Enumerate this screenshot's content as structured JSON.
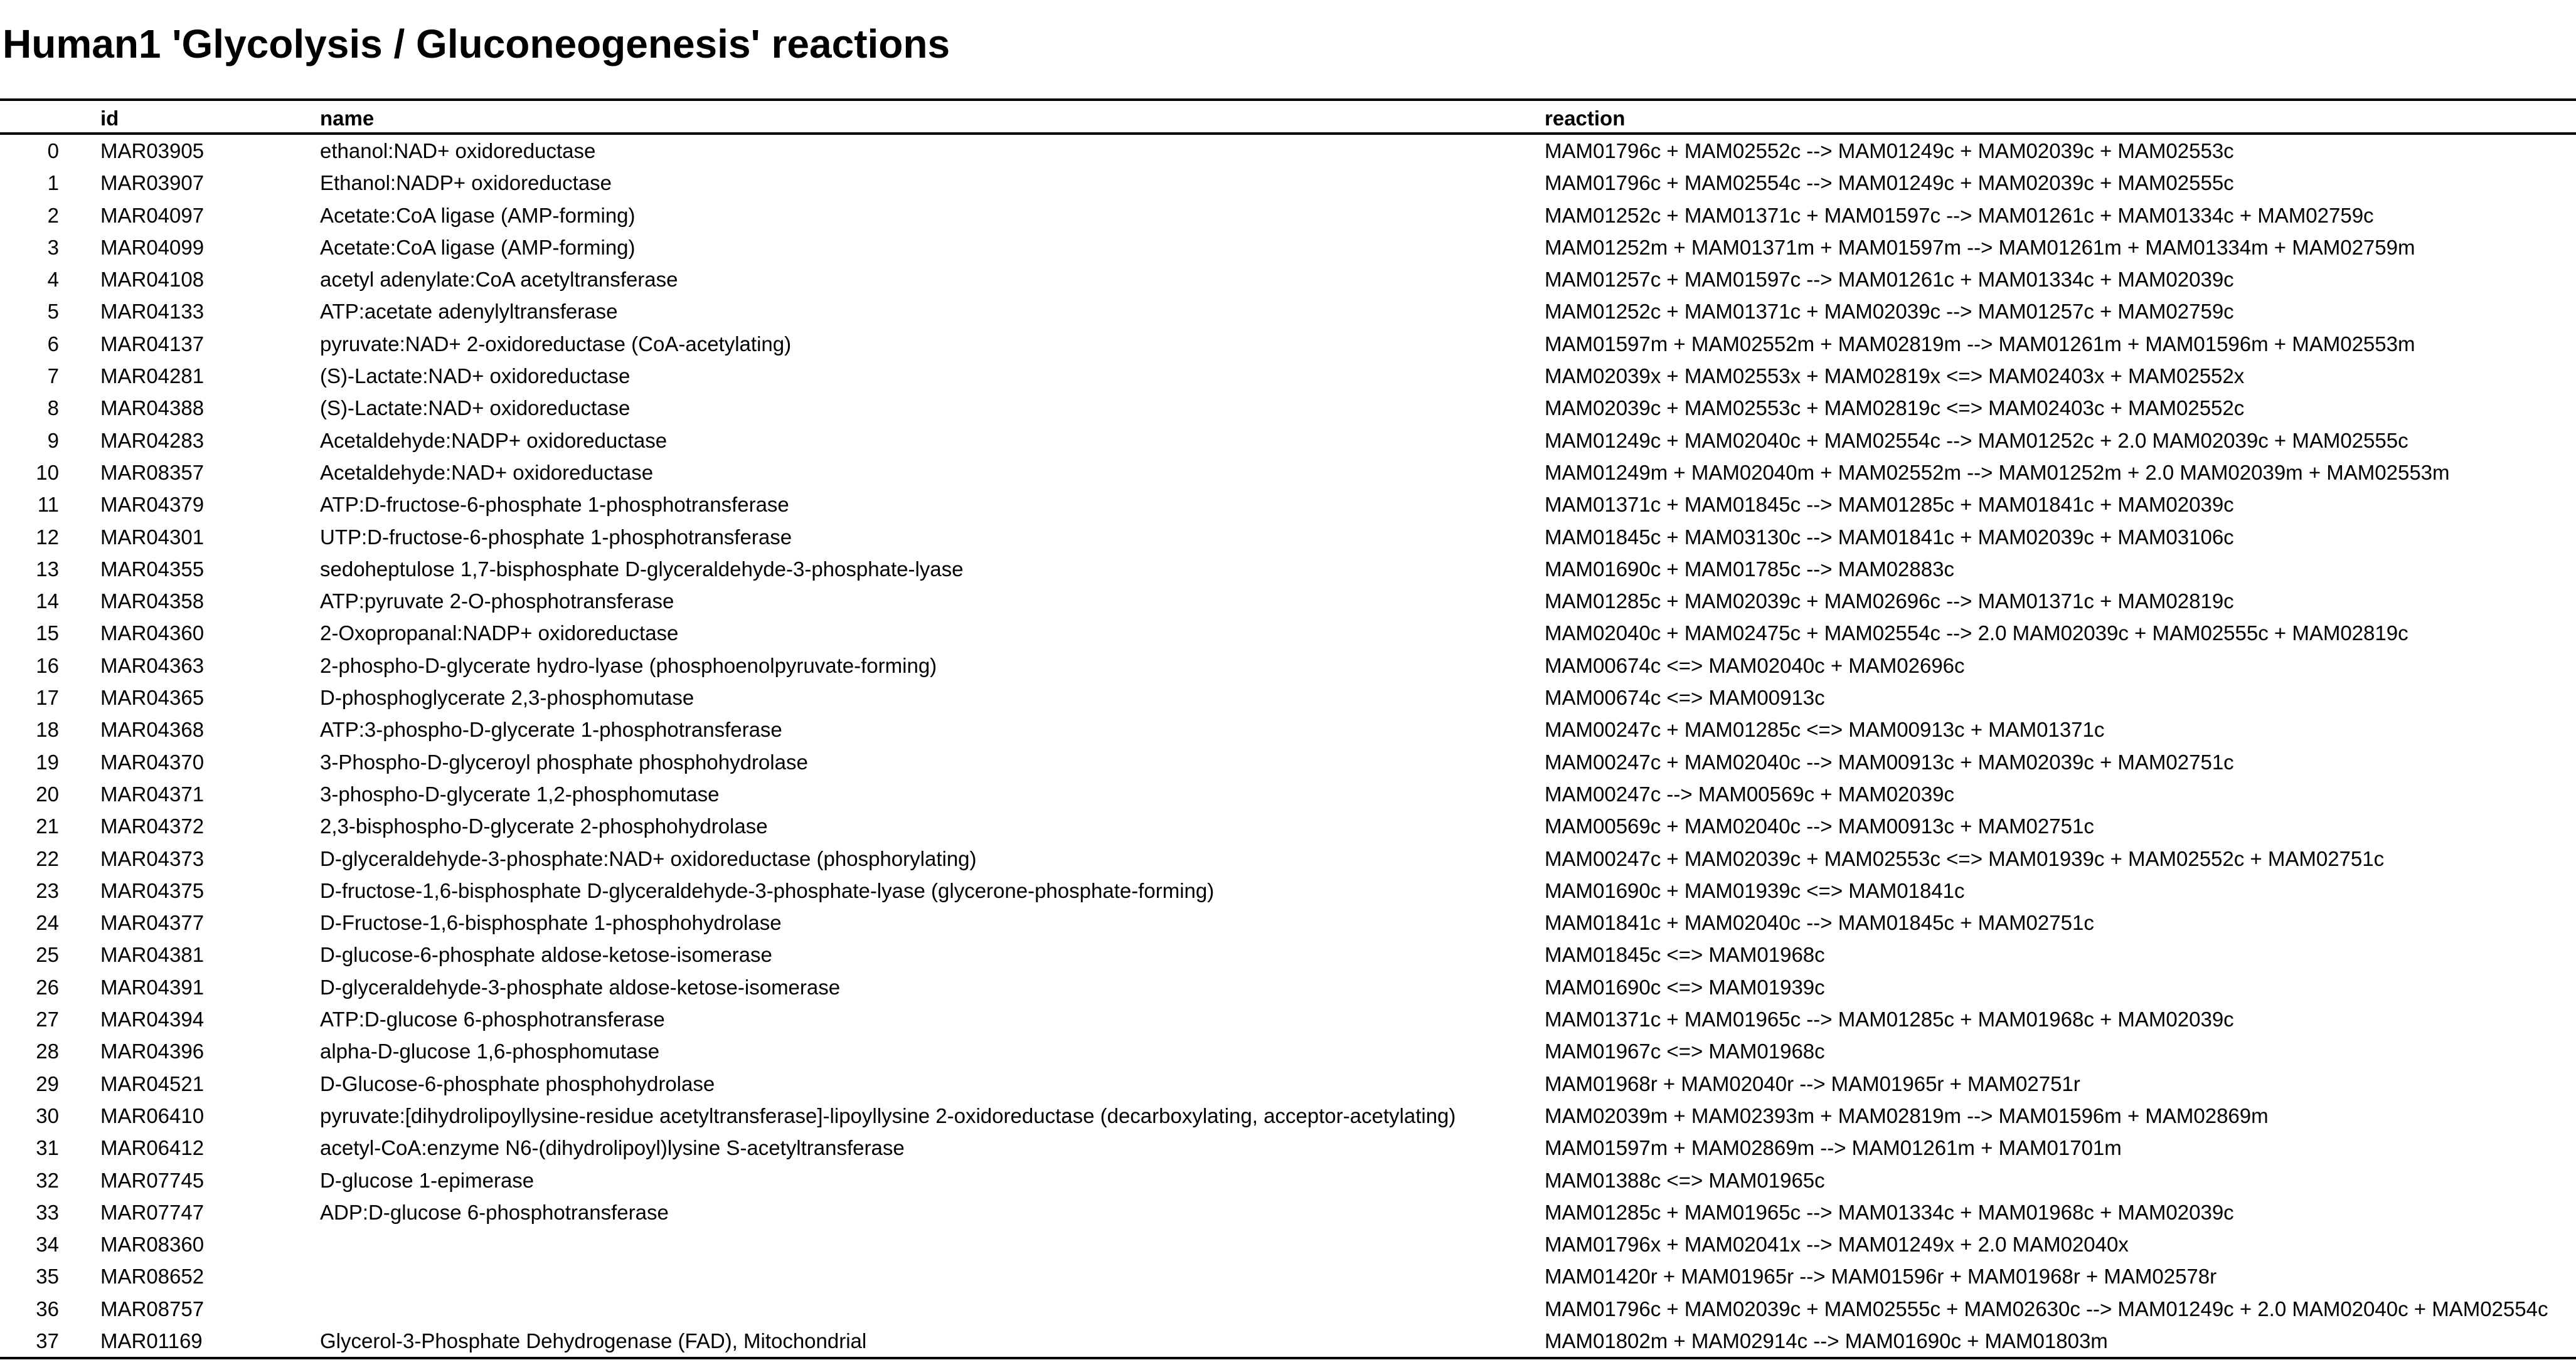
{
  "title": "Human1 'Glycolysis / Gluconeogenesis' reactions",
  "columns": {
    "index": "",
    "id": "id",
    "name": "name",
    "reaction": "reaction"
  },
  "rows": [
    {
      "index": "0",
      "id": "MAR03905",
      "name": "ethanol:NAD+ oxidoreductase",
      "reaction": "MAM01796c + MAM02552c --> MAM01249c + MAM02039c + MAM02553c"
    },
    {
      "index": "1",
      "id": "MAR03907",
      "name": "Ethanol:NADP+ oxidoreductase",
      "reaction": "MAM01796c + MAM02554c --> MAM01249c + MAM02039c + MAM02555c"
    },
    {
      "index": "2",
      "id": "MAR04097",
      "name": "Acetate:CoA ligase (AMP-forming)",
      "reaction": "MAM01252c + MAM01371c + MAM01597c --> MAM01261c + MAM01334c + MAM02759c"
    },
    {
      "index": "3",
      "id": "MAR04099",
      "name": "Acetate:CoA ligase (AMP-forming)",
      "reaction": "MAM01252m + MAM01371m + MAM01597m --> MAM01261m + MAM01334m + MAM02759m"
    },
    {
      "index": "4",
      "id": "MAR04108",
      "name": "acetyl adenylate:CoA acetyltransferase",
      "reaction": "MAM01257c + MAM01597c --> MAM01261c + MAM01334c + MAM02039c"
    },
    {
      "index": "5",
      "id": "MAR04133",
      "name": "ATP:acetate adenylyltransferase",
      "reaction": "MAM01252c + MAM01371c + MAM02039c --> MAM01257c + MAM02759c"
    },
    {
      "index": "6",
      "id": "MAR04137",
      "name": "pyruvate:NAD+ 2-oxidoreductase (CoA-acetylating)",
      "reaction": "MAM01597m + MAM02552m + MAM02819m --> MAM01261m + MAM01596m + MAM02553m"
    },
    {
      "index": "7",
      "id": "MAR04281",
      "name": "(S)-Lactate:NAD+ oxidoreductase",
      "reaction": "MAM02039x + MAM02553x + MAM02819x <=> MAM02403x + MAM02552x"
    },
    {
      "index": "8",
      "id": "MAR04388",
      "name": "(S)-Lactate:NAD+ oxidoreductase",
      "reaction": "MAM02039c + MAM02553c + MAM02819c <=> MAM02403c + MAM02552c"
    },
    {
      "index": "9",
      "id": "MAR04283",
      "name": "Acetaldehyde:NADP+ oxidoreductase",
      "reaction": "MAM01249c + MAM02040c + MAM02554c --> MAM01252c + 2.0 MAM02039c + MAM02555c"
    },
    {
      "index": "10",
      "id": "MAR08357",
      "name": "Acetaldehyde:NAD+ oxidoreductase",
      "reaction": "MAM01249m + MAM02040m + MAM02552m --> MAM01252m + 2.0 MAM02039m + MAM02553m"
    },
    {
      "index": "11",
      "id": "MAR04379",
      "name": "ATP:D-fructose-6-phosphate 1-phosphotransferase",
      "reaction": "MAM01371c + MAM01845c --> MAM01285c + MAM01841c + MAM02039c"
    },
    {
      "index": "12",
      "id": "MAR04301",
      "name": "UTP:D-fructose-6-phosphate 1-phosphotransferase",
      "reaction": "MAM01845c + MAM03130c --> MAM01841c + MAM02039c + MAM03106c"
    },
    {
      "index": "13",
      "id": "MAR04355",
      "name": "sedoheptulose 1,7-bisphosphate D-glyceraldehyde-3-phosphate-lyase",
      "reaction": "MAM01690c + MAM01785c --> MAM02883c"
    },
    {
      "index": "14",
      "id": "MAR04358",
      "name": "ATP:pyruvate 2-O-phosphotransferase",
      "reaction": "MAM01285c + MAM02039c + MAM02696c --> MAM01371c + MAM02819c"
    },
    {
      "index": "15",
      "id": "MAR04360",
      "name": "2-Oxopropanal:NADP+ oxidoreductase",
      "reaction": "MAM02040c + MAM02475c + MAM02554c --> 2.0 MAM02039c + MAM02555c + MAM02819c"
    },
    {
      "index": "16",
      "id": "MAR04363",
      "name": "2-phospho-D-glycerate hydro-lyase (phosphoenolpyruvate-forming)",
      "reaction": "MAM00674c <=> MAM02040c + MAM02696c"
    },
    {
      "index": "17",
      "id": "MAR04365",
      "name": "D-phosphoglycerate 2,3-phosphomutase",
      "reaction": "MAM00674c <=> MAM00913c"
    },
    {
      "index": "18",
      "id": "MAR04368",
      "name": "ATP:3-phospho-D-glycerate 1-phosphotransferase",
      "reaction": "MAM00247c + MAM01285c <=> MAM00913c + MAM01371c"
    },
    {
      "index": "19",
      "id": "MAR04370",
      "name": "3-Phospho-D-glyceroyl phosphate phosphohydrolase",
      "reaction": "MAM00247c + MAM02040c --> MAM00913c + MAM02039c + MAM02751c"
    },
    {
      "index": "20",
      "id": "MAR04371",
      "name": "3-phospho-D-glycerate 1,2-phosphomutase",
      "reaction": "MAM00247c --> MAM00569c + MAM02039c"
    },
    {
      "index": "21",
      "id": "MAR04372",
      "name": "2,3-bisphospho-D-glycerate 2-phosphohydrolase",
      "reaction": "MAM00569c + MAM02040c --> MAM00913c + MAM02751c"
    },
    {
      "index": "22",
      "id": "MAR04373",
      "name": "D-glyceraldehyde-3-phosphate:NAD+ oxidoreductase (phosphorylating)",
      "reaction": "MAM00247c + MAM02039c + MAM02553c <=> MAM01939c + MAM02552c + MAM02751c"
    },
    {
      "index": "23",
      "id": "MAR04375",
      "name": "D-fructose-1,6-bisphosphate D-glyceraldehyde-3-phosphate-lyase (glycerone-phosphate-forming)",
      "reaction": "MAM01690c + MAM01939c <=> MAM01841c"
    },
    {
      "index": "24",
      "id": "MAR04377",
      "name": "D-Fructose-1,6-bisphosphate 1-phosphohydrolase",
      "reaction": "MAM01841c + MAM02040c --> MAM01845c + MAM02751c"
    },
    {
      "index": "25",
      "id": "MAR04381",
      "name": "D-glucose-6-phosphate aldose-ketose-isomerase",
      "reaction": "MAM01845c <=> MAM01968c"
    },
    {
      "index": "26",
      "id": "MAR04391",
      "name": "D-glyceraldehyde-3-phosphate aldose-ketose-isomerase",
      "reaction": "MAM01690c <=> MAM01939c"
    },
    {
      "index": "27",
      "id": "MAR04394",
      "name": "ATP:D-glucose 6-phosphotransferase",
      "reaction": "MAM01371c + MAM01965c --> MAM01285c + MAM01968c + MAM02039c"
    },
    {
      "index": "28",
      "id": "MAR04396",
      "name": "alpha-D-glucose 1,6-phosphomutase",
      "reaction": "MAM01967c <=> MAM01968c"
    },
    {
      "index": "29",
      "id": "MAR04521",
      "name": "D-Glucose-6-phosphate phosphohydrolase",
      "reaction": "MAM01968r + MAM02040r --> MAM01965r + MAM02751r"
    },
    {
      "index": "30",
      "id": "MAR06410",
      "name": "pyruvate:[dihydrolipoyllysine-residue acetyltransferase]-lipoyllysine 2-oxidoreductase (decarboxylating, acceptor-acetylating)",
      "reaction": "MAM02039m + MAM02393m + MAM02819m --> MAM01596m + MAM02869m"
    },
    {
      "index": "31",
      "id": "MAR06412",
      "name": "acetyl-CoA:enzyme N6-(dihydrolipoyl)lysine S-acetyltransferase",
      "reaction": "MAM01597m + MAM02869m --> MAM01261m + MAM01701m"
    },
    {
      "index": "32",
      "id": "MAR07745",
      "name": "D-glucose 1-epimerase",
      "reaction": "MAM01388c <=> MAM01965c"
    },
    {
      "index": "33",
      "id": "MAR07747",
      "name": "ADP:D-glucose 6-phosphotransferase",
      "reaction": "MAM01285c + MAM01965c --> MAM01334c + MAM01968c + MAM02039c"
    },
    {
      "index": "34",
      "id": "MAR08360",
      "name": "",
      "reaction": "MAM01796x + MAM02041x --> MAM01249x + 2.0 MAM02040x"
    },
    {
      "index": "35",
      "id": "MAR08652",
      "name": "",
      "reaction": "MAM01420r + MAM01965r --> MAM01596r + MAM01968r + MAM02578r"
    },
    {
      "index": "36",
      "id": "MAR08757",
      "name": "",
      "reaction": "MAM01796c + MAM02039c + MAM02555c + MAM02630c --> MAM01249c + 2.0 MAM02040c + MAM02554c"
    },
    {
      "index": "37",
      "id": "MAR01169",
      "name": "Glycerol-3-Phosphate Dehydrogenase (FAD), Mitochondrial",
      "reaction": "MAM01802m + MAM02914c --> MAM01690c + MAM01803m"
    }
  ]
}
